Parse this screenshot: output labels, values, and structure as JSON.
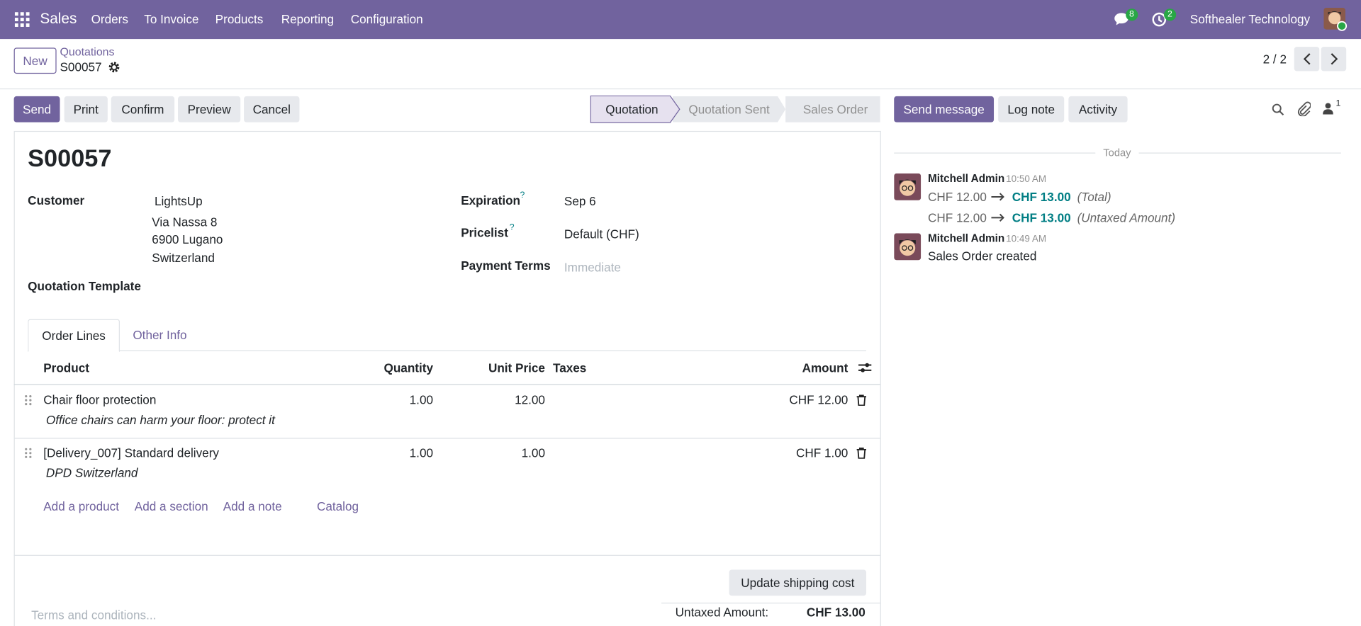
{
  "navbar": {
    "app": "Sales",
    "menu": [
      "Orders",
      "To Invoice",
      "Products",
      "Reporting",
      "Configuration"
    ],
    "messages_count": "8",
    "activities_count": "2",
    "company": "Softhealer Technology"
  },
  "control_panel": {
    "new_button": "New",
    "breadcrumb": "Quotations",
    "record": "S00057",
    "pager": "2 / 2"
  },
  "actions": [
    "Send",
    "Print",
    "Confirm",
    "Preview",
    "Cancel"
  ],
  "statusbar": [
    "Quotation",
    "Quotation Sent",
    "Sales Order"
  ],
  "form": {
    "name": "S00057",
    "customer_label": "Customer",
    "customer": {
      "name": "LightsUp",
      "address": [
        "Via Nassa 8",
        "6900 Lugano",
        "Switzerland"
      ]
    },
    "template_label": "Quotation Template",
    "expiration_label": "Expiration",
    "expiration_help": "?",
    "expiration": "Sep 6",
    "pricelist_label": "Pricelist",
    "pricelist_help": "?",
    "pricelist": "Default (CHF)",
    "payment_terms_label": "Payment Terms",
    "payment_terms_placeholder": "Immediate"
  },
  "tabs": [
    "Order Lines",
    "Other Info"
  ],
  "table": {
    "columns": [
      "Product",
      "Quantity",
      "Unit Price",
      "Taxes",
      "Amount"
    ],
    "rows": [
      {
        "product": "Chair floor protection",
        "description": "Office chairs can harm your floor: protect it",
        "quantity": "1.00",
        "unit_price": "12.00",
        "amount": "CHF 12.00"
      },
      {
        "product": "[Delivery_007] Standard delivery",
        "description": "DPD Switzerland",
        "quantity": "1.00",
        "unit_price": "1.00",
        "amount": "CHF 1.00"
      }
    ],
    "add_links": [
      "Add a product",
      "Add a section",
      "Add a note",
      "Catalog"
    ]
  },
  "footer": {
    "update_shipping": "Update shipping cost",
    "terms_placeholder": "Terms and conditions...",
    "untaxed_label": "Untaxed Amount:",
    "untaxed": "CHF 13.00"
  },
  "chatter": {
    "buttons": [
      "Send message",
      "Log note",
      "Activity"
    ],
    "followers": "1",
    "date_separator": "Today",
    "messages": [
      {
        "author": "Mitchell Admin",
        "time": "10:50 AM",
        "changes": [
          {
            "old": "CHF 12.00",
            "new": "CHF 13.00",
            "field": "(Total)"
          },
          {
            "old": "CHF 12.00",
            "new": "CHF 13.00",
            "field": "(Untaxed Amount)"
          }
        ]
      },
      {
        "author": "Mitchell Admin",
        "time": "10:49 AM",
        "body": "Sales Order created"
      }
    ]
  }
}
